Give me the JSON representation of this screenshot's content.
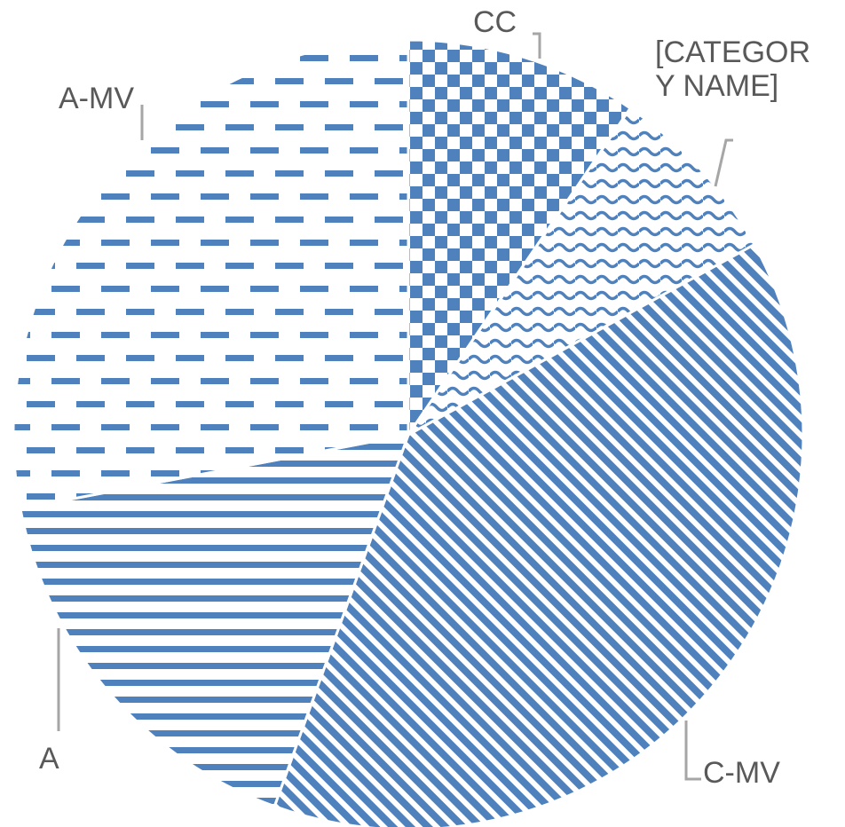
{
  "chart_data": {
    "type": "pie",
    "title": "",
    "legend": "none",
    "colors": {
      "pattern": "#4f81bd",
      "leader_line": "#a6a6a6",
      "label_text": "#595959"
    },
    "slices": [
      {
        "label": "CC",
        "value": 9.5,
        "pattern": "checkerboard"
      },
      {
        "label": "[CATEGORY NAME]",
        "label_lines": [
          "[CATEGOR",
          "Y NAME]"
        ],
        "value": 7.5,
        "pattern": "wave"
      },
      {
        "label": "C-MV",
        "value": 38.5,
        "pattern": "diagonal-stripes"
      },
      {
        "label": "A",
        "value": 16.5,
        "pattern": "horizontal-stripes"
      },
      {
        "label": "A-MV",
        "value": 28.0,
        "pattern": "dashed-horizontal"
      }
    ]
  }
}
